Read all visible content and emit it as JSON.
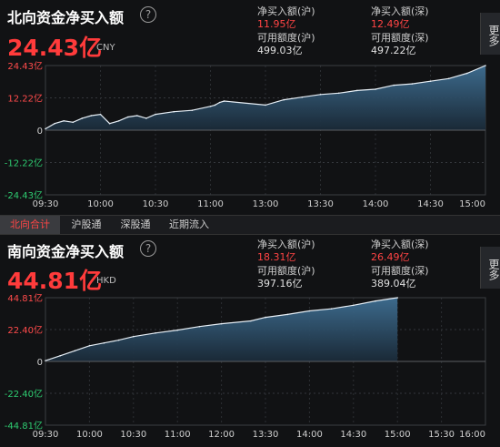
{
  "north": {
    "title": "北向资金净买入额",
    "value": "24.43亿",
    "unit": "CNY",
    "stats": {
      "sh_buy_label": "净买入额(沪)",
      "sh_buy_value": "11.95亿",
      "sz_buy_label": "净买入额(深)",
      "sz_buy_value": "12.49亿",
      "sh_quota_label": "可用额度(沪)",
      "sh_quota_value": "499.03亿",
      "sz_quota_label": "可用额度(深)",
      "sz_quota_value": "497.22亿"
    }
  },
  "south": {
    "title": "南向资金净买入额",
    "value": "44.81亿",
    "unit": "HKD",
    "stats": {
      "sh_buy_label": "净买入额(沪)",
      "sh_buy_value": "18.31亿",
      "sz_buy_label": "净买入额(深)",
      "sz_buy_value": "26.49亿",
      "sh_quota_label": "可用额度(沪)",
      "sh_quota_value": "397.16亿",
      "sz_quota_label": "可用额度(深)",
      "sz_quota_value": "389.04亿"
    }
  },
  "more_label": "更多",
  "tabs": [
    "北向合计",
    "沪股通",
    "深股通",
    "近期流入"
  ],
  "colors": {
    "accent_red": "#ff3b3b",
    "area_top": "#3f6f93",
    "area_bottom": "#1a2a38",
    "line": "#e6eef5"
  },
  "chart_data": [
    {
      "type": "area",
      "y_tick_labels": [
        "24.43亿",
        "12.22亿",
        "0",
        "-12.22亿",
        "-24.43亿"
      ],
      "x_tick_labels": [
        "09:30",
        "10:00",
        "10:30",
        "11:00",
        "13:00",
        "13:30",
        "14:00",
        "14:30",
        "15:00"
      ],
      "ylim": [
        -24.43,
        24.43
      ],
      "x": [
        "09:30",
        "09:35",
        "09:40",
        "09:45",
        "09:50",
        "09:55",
        "10:00",
        "10:05",
        "10:10",
        "10:15",
        "10:20",
        "10:25",
        "10:30",
        "10:40",
        "10:50",
        "11:00",
        "11:10",
        "11:20",
        "11:30",
        "13:00",
        "13:10",
        "13:20",
        "13:30",
        "13:40",
        "13:50",
        "14:00",
        "14:10",
        "14:20",
        "14:30",
        "14:40",
        "14:50",
        "15:00"
      ],
      "values": [
        0.5,
        2.5,
        3.5,
        3.0,
        4.5,
        5.5,
        6.0,
        2.5,
        3.5,
        5.0,
        5.5,
        4.5,
        6.0,
        7.0,
        7.5,
        9.0,
        9.5,
        10.5,
        11.0,
        9.5,
        11.5,
        12.5,
        13.5,
        14.0,
        15.0,
        15.5,
        17.0,
        17.5,
        18.5,
        19.5,
        21.5,
        24.43
      ]
    },
    {
      "type": "area",
      "y_tick_labels": [
        "44.81亿",
        "22.40亿",
        "0",
        "-22.40亿",
        "-44.81亿"
      ],
      "x_tick_labels": [
        "09:30",
        "10:00",
        "10:30",
        "11:00",
        "12:00",
        "13:30",
        "14:00",
        "14:30",
        "15:00",
        "15:30",
        "16:00"
      ],
      "ylim": [
        -44.81,
        44.81
      ],
      "x": [
        "09:30",
        "09:40",
        "09:50",
        "10:00",
        "10:10",
        "10:20",
        "10:30",
        "10:45",
        "11:00",
        "11:30",
        "12:00",
        "13:00",
        "13:30",
        "13:45",
        "14:00",
        "14:15",
        "14:30",
        "14:45",
        "15:00"
      ],
      "values": [
        0.5,
        4.0,
        7.5,
        11.0,
        13.0,
        15.0,
        17.5,
        20.0,
        22.0,
        24.5,
        26.5,
        28.5,
        31.0,
        33.0,
        35.5,
        37.0,
        39.5,
        42.5,
        44.81
      ]
    }
  ]
}
